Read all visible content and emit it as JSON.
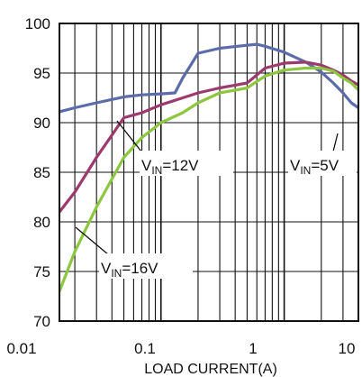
{
  "chart_data": {
    "type": "line",
    "title": "",
    "xlabel": "LOAD CURRENT(A)",
    "ylabel": "",
    "x_scale": "log",
    "xlim": [
      0.015,
      4.0
    ],
    "ylim": [
      70,
      100
    ],
    "grid": true,
    "x_tick_labels": [
      "0.01",
      "0.1",
      "1",
      "10"
    ],
    "x_tick_values": [
      0.01,
      0.1,
      1,
      10
    ],
    "y_ticks": [
      70,
      75,
      80,
      85,
      90,
      95,
      100
    ],
    "series": [
      {
        "name": "VIN=5V",
        "color": "#5b6cab",
        "x": [
          0.015,
          0.02,
          0.03,
          0.05,
          0.07,
          0.1,
          0.13,
          0.15,
          0.2,
          0.3,
          0.5,
          0.6,
          0.7,
          1.0,
          1.5,
          2.0,
          2.5,
          3.0,
          3.5,
          4.0
        ],
        "y": [
          91.1,
          91.5,
          92.0,
          92.6,
          92.8,
          92.9,
          93.0,
          94.5,
          97.0,
          97.5,
          97.8,
          97.9,
          97.7,
          97.1,
          96.1,
          95.1,
          94.0,
          93.0,
          92.0,
          91.5
        ]
      },
      {
        "name": "VIN=12V",
        "color": "#9c3a6e",
        "x": [
          0.015,
          0.02,
          0.03,
          0.05,
          0.07,
          0.1,
          0.15,
          0.2,
          0.3,
          0.5,
          0.7,
          1.0,
          1.5,
          2.0,
          2.5,
          3.0,
          3.5,
          4.0
        ],
        "y": [
          81.0,
          83.0,
          86.5,
          90.5,
          91.0,
          91.8,
          92.5,
          93.0,
          93.5,
          94.0,
          95.5,
          96.0,
          96.1,
          95.8,
          95.3,
          94.8,
          94.2,
          93.8
        ]
      },
      {
        "name": "VIN=16V",
        "color": "#8dc63f",
        "x": [
          0.015,
          0.02,
          0.03,
          0.05,
          0.07,
          0.1,
          0.15,
          0.2,
          0.3,
          0.5,
          0.7,
          1.0,
          1.5,
          2.0,
          2.5,
          3.0,
          3.5,
          4.0
        ],
        "y": [
          73.0,
          77.0,
          81.5,
          86.5,
          88.5,
          90.0,
          91.0,
          92.0,
          93.0,
          93.5,
          94.7,
          95.3,
          95.5,
          95.5,
          95.2,
          94.5,
          94.0,
          93.3
        ]
      }
    ],
    "annotations": [
      {
        "id": "vin12",
        "main": "V",
        "sub": "IN",
        "rest": "=12V"
      },
      {
        "id": "vin5",
        "main": "V",
        "sub": "IN",
        "rest": "=5V"
      },
      {
        "id": "vin16",
        "main": "V",
        "sub": "IN",
        "rest": "=16V"
      }
    ]
  }
}
